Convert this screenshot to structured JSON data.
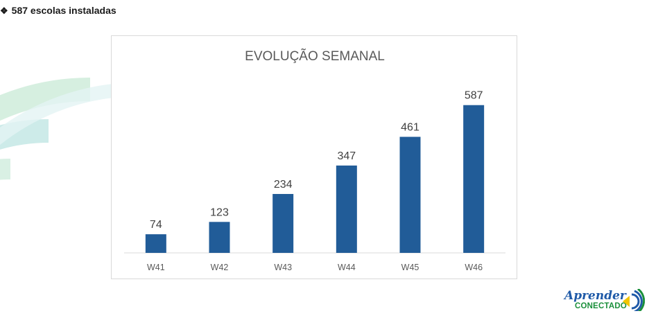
{
  "heading": {
    "bullet": "❖",
    "text": "587 escolas instaladas"
  },
  "chart_data": {
    "type": "bar",
    "title": "EVOLUÇÃO SEMANAL",
    "categories": [
      "W41",
      "W42",
      "W43",
      "W44",
      "W45",
      "W46"
    ],
    "values": [
      74,
      123,
      234,
      347,
      461,
      587
    ],
    "xlabel": "",
    "ylabel": "",
    "ylim": [
      0,
      600
    ],
    "grid": false,
    "legend": "none",
    "data_labels": true,
    "bar_color": "#215C98"
  },
  "logo": {
    "line1": "Aprender",
    "line2": "CONECTADO",
    "icon": "wifi-signal-icon"
  },
  "colors": {
    "bar": "#215C98",
    "decor_teal": "#c9e9ea",
    "decor_green": "#ccebc6",
    "logo_blue": "#1f5aa8",
    "logo_green": "#1a8f3a",
    "logo_yellow": "#f2c500"
  }
}
